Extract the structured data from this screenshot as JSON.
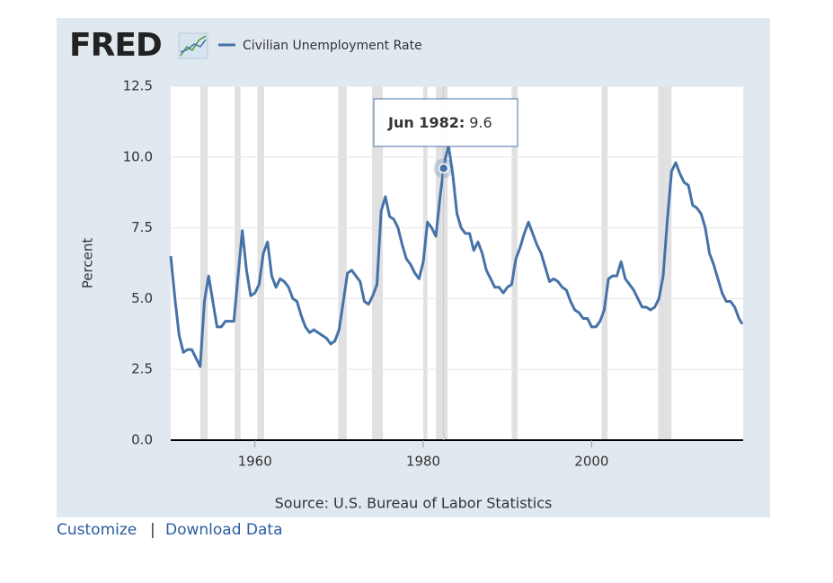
{
  "chart_data": {
    "type": "line",
    "logo": "FRED",
    "y_label": "Percent",
    "source": "Source: U.S. Bureau of Labor Statistics",
    "xlim": [
      1950,
      2018
    ],
    "ylim": [
      0,
      12.5
    ],
    "xticks": [
      1960,
      1980,
      2000
    ],
    "yticks": [
      {
        "value": 0,
        "label": "0.0"
      },
      2.5,
      {
        "value": 5,
        "label": "5.0"
      },
      7.5,
      {
        "value": 10,
        "label": "10.0"
      },
      12.5
    ],
    "grid": true,
    "recessions": [
      [
        1953.5,
        1954.4
      ],
      [
        1957.6,
        1958.3
      ],
      [
        1960.3,
        1961.1
      ],
      [
        1969.9,
        1970.9
      ],
      [
        1973.9,
        1975.2
      ],
      [
        1980.0,
        1980.5
      ],
      [
        1981.5,
        1982.9
      ],
      [
        1990.5,
        1991.2
      ],
      [
        2001.2,
        2001.9
      ],
      [
        2007.9,
        2009.5
      ]
    ],
    "x": [
      1950.0,
      1950.5,
      1951.0,
      1951.5,
      1952.0,
      1952.5,
      1953.0,
      1953.5,
      1954.0,
      1954.5,
      1955.0,
      1955.5,
      1956.0,
      1956.5,
      1957.0,
      1957.5,
      1958.0,
      1958.5,
      1959.0,
      1959.5,
      1960.0,
      1960.5,
      1961.0,
      1961.5,
      1962.0,
      1962.5,
      1963.0,
      1963.5,
      1964.0,
      1964.5,
      1965.0,
      1965.5,
      1966.0,
      1966.5,
      1967.0,
      1967.5,
      1968.0,
      1968.5,
      1969.0,
      1969.5,
      1970.0,
      1970.5,
      1971.0,
      1971.5,
      1972.0,
      1972.5,
      1973.0,
      1973.5,
      1974.0,
      1974.5,
      1975.0,
      1975.5,
      1976.0,
      1976.5,
      1977.0,
      1977.5,
      1978.0,
      1978.5,
      1979.0,
      1979.5,
      1980.0,
      1980.5,
      1981.0,
      1981.5,
      1982.0,
      1982.42,
      1982.5,
      1983.0,
      1983.5,
      1984.0,
      1984.5,
      1985.0,
      1985.5,
      1986.0,
      1986.5,
      1987.0,
      1987.5,
      1988.0,
      1988.5,
      1989.0,
      1989.5,
      1990.0,
      1990.5,
      1991.0,
      1991.5,
      1992.0,
      1992.5,
      1993.0,
      1993.5,
      1994.0,
      1994.5,
      1995.0,
      1995.5,
      1996.0,
      1996.5,
      1997.0,
      1997.5,
      1998.0,
      1998.5,
      1999.0,
      1999.5,
      2000.0,
      2000.5,
      2001.0,
      2001.5,
      2002.0,
      2002.5,
      2003.0,
      2003.5,
      2004.0,
      2004.5,
      2005.0,
      2005.5,
      2006.0,
      2006.5,
      2007.0,
      2007.5,
      2008.0,
      2008.5,
      2009.0,
      2009.5,
      2010.0,
      2010.5,
      2011.0,
      2011.5,
      2012.0,
      2012.5,
      2013.0,
      2013.5,
      2014.0,
      2014.5,
      2015.0,
      2015.5,
      2016.0,
      2016.5,
      2017.0,
      2017.5,
      2017.9
    ],
    "series": [
      {
        "name": "Civilian Unemployment Rate",
        "color": "#4572a7",
        "values": [
          6.5,
          5.0,
          3.7,
          3.1,
          3.2,
          3.2,
          2.9,
          2.6,
          4.9,
          5.8,
          4.9,
          4.0,
          4.0,
          4.2,
          4.2,
          4.2,
          5.8,
          7.4,
          6.0,
          5.1,
          5.2,
          5.5,
          6.6,
          7.0,
          5.8,
          5.4,
          5.7,
          5.6,
          5.4,
          5.0,
          4.9,
          4.4,
          4.0,
          3.8,
          3.9,
          3.8,
          3.7,
          3.6,
          3.4,
          3.5,
          3.9,
          4.9,
          5.9,
          6.0,
          5.8,
          5.6,
          4.9,
          4.8,
          5.1,
          5.5,
          8.1,
          8.6,
          7.9,
          7.8,
          7.5,
          6.9,
          6.4,
          6.2,
          5.9,
          5.7,
          6.3,
          7.7,
          7.5,
          7.2,
          8.6,
          9.6,
          9.8,
          10.4,
          9.4,
          8.0,
          7.5,
          7.3,
          7.3,
          6.7,
          7.0,
          6.6,
          6.0,
          5.7,
          5.4,
          5.4,
          5.2,
          5.4,
          5.5,
          6.4,
          6.8,
          7.3,
          7.7,
          7.3,
          6.9,
          6.6,
          6.1,
          5.6,
          5.7,
          5.6,
          5.4,
          5.3,
          4.9,
          4.6,
          4.5,
          4.3,
          4.3,
          4.0,
          4.0,
          4.2,
          4.6,
          5.7,
          5.8,
          5.8,
          6.3,
          5.7,
          5.5,
          5.3,
          5.0,
          4.7,
          4.7,
          4.6,
          4.7,
          5.0,
          5.8,
          7.8,
          9.5,
          9.8,
          9.4,
          9.1,
          9.0,
          8.3,
          8.2,
          8.0,
          7.5,
          6.6,
          6.2,
          5.7,
          5.2,
          4.9,
          4.9,
          4.7,
          4.3,
          4.1
        ]
      }
    ],
    "annotation": {
      "label": "Jun 1982:",
      "x": 1982.42,
      "value": 9.6
    },
    "links": [
      "Customize",
      "Download Data"
    ],
    "separator": "|"
  }
}
